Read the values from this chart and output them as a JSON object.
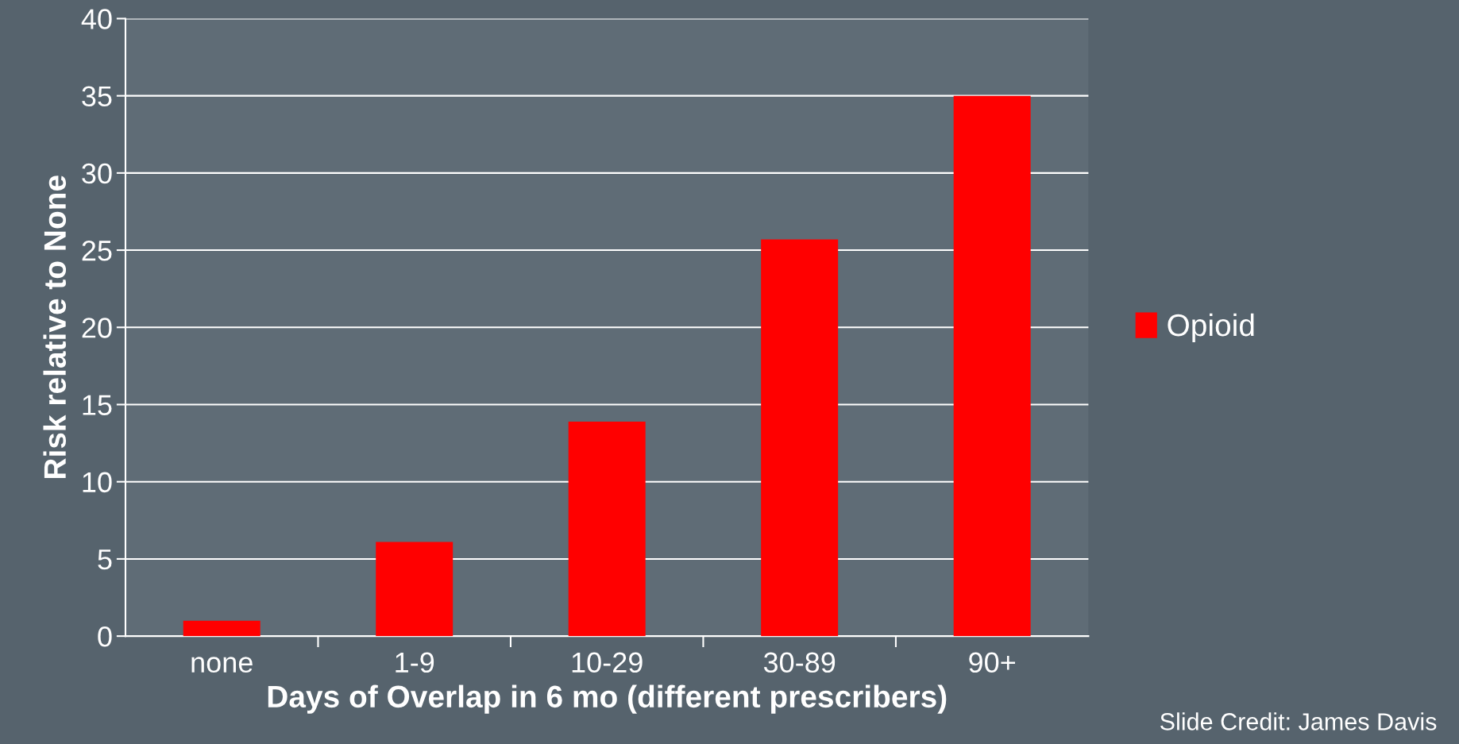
{
  "chart_data": {
    "type": "bar",
    "xlabel": "Days of Overlap in 6 mo (different prescribers)",
    "ylabel": "Risk relative to None",
    "categories": [
      "none",
      "1-9",
      "10-29",
      "30-89",
      "90+"
    ],
    "series": [
      {
        "name": "Opioid",
        "color": "#ff0000",
        "values": [
          1.0,
          6.1,
          13.9,
          25.7,
          35.0
        ]
      }
    ],
    "ylim": [
      0,
      40
    ],
    "yticks": [
      0,
      5,
      10,
      15,
      20,
      25,
      30,
      35,
      40
    ],
    "grid": "y",
    "legend": "right",
    "annotations": [
      "Slide Credit: James Davis"
    ]
  }
}
